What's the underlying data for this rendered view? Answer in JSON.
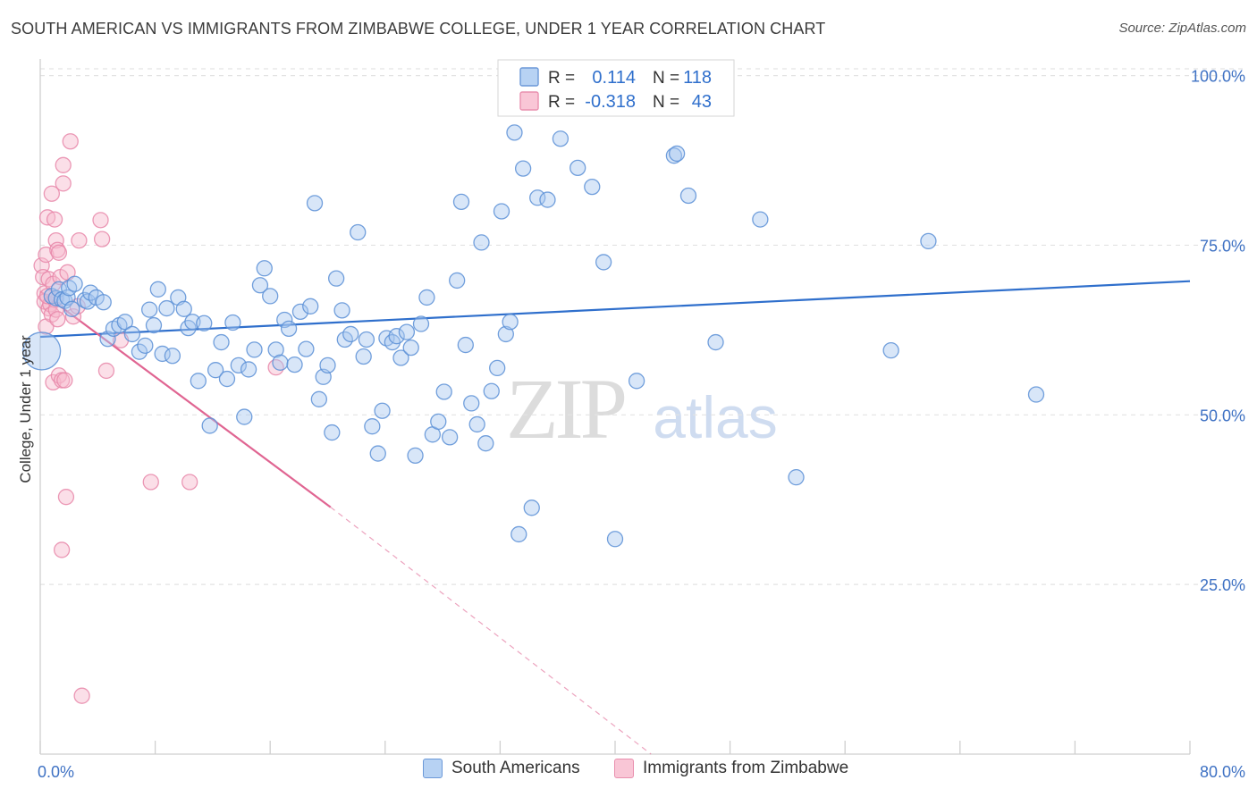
{
  "title": "SOUTH AMERICAN VS IMMIGRANTS FROM ZIMBABWE COLLEGE, UNDER 1 YEAR CORRELATION CHART",
  "source": "Source: ZipAtlas.com",
  "watermark": {
    "zip": "ZIP",
    "atlas": "atlas"
  },
  "colors": {
    "blue_fill": "#a9c8f0",
    "blue_stroke": "#5b8fd6",
    "blue_line": "#2f6fcc",
    "pink_fill": "#f6b8cc",
    "pink_stroke": "#e887a9",
    "pink_line": "#e06592",
    "tick_label": "#3f72c4",
    "grid": "#e3e3e3"
  },
  "legend_box": {
    "rows": [
      {
        "r_label": "R =",
        "r_value": "0.114",
        "n_label": "N =",
        "n_value": "118",
        "color": "blue"
      },
      {
        "r_label": "R =",
        "r_value": "-0.318",
        "n_label": "N =",
        "n_value": "43",
        "color": "pink"
      }
    ]
  },
  "legend_bottom": [
    {
      "label": "South Americans",
      "color": "blue"
    },
    {
      "label": "Immigrants from Zimbabwe",
      "color": "pink"
    }
  ],
  "chart_data": {
    "type": "scatter",
    "title": "SOUTH AMERICAN VS IMMIGRANTS FROM ZIMBABWE COLLEGE, UNDER 1 YEAR CORRELATION CHART",
    "xlabel": "",
    "ylabel": "College, Under 1 year",
    "xlim": [
      0,
      80
    ],
    "ylim": [
      0,
      101
    ],
    "x_tick_labels": [
      "0.0%",
      "80.0%"
    ],
    "y_ticks": [
      {
        "value": 25,
        "label": "25.0%"
      },
      {
        "value": 50,
        "label": "50.0%"
      },
      {
        "value": 75,
        "label": "75.0%"
      },
      {
        "value": 100,
        "label": "100.0%"
      }
    ],
    "grid": "horizontal dashed",
    "legend_position": "top-center",
    "series": [
      {
        "name": "South Americans",
        "color": "blue",
        "R": 0.114,
        "N": 118,
        "trend": {
          "x": [
            0,
            80
          ],
          "y": [
            61.5,
            69.7
          ],
          "style": "solid"
        },
        "points": [
          [
            0.1,
            59.4,
            "large"
          ],
          [
            0.8,
            67.5
          ],
          [
            1.1,
            67.2
          ],
          [
            1.3,
            68.5
          ],
          [
            1.5,
            67.0
          ],
          [
            1.7,
            66.8
          ],
          [
            1.9,
            67.3
          ],
          [
            2.0,
            68.7
          ],
          [
            2.2,
            65.6
          ],
          [
            2.4,
            69.3
          ],
          [
            3.1,
            66.9
          ],
          [
            3.3,
            66.7
          ],
          [
            3.5,
            68.0
          ],
          [
            3.9,
            67.3
          ],
          [
            4.4,
            66.6
          ],
          [
            4.7,
            61.2
          ],
          [
            5.1,
            62.7
          ],
          [
            5.5,
            63.2
          ],
          [
            5.9,
            63.7
          ],
          [
            6.4,
            61.9
          ],
          [
            6.9,
            59.3
          ],
          [
            7.3,
            60.2
          ],
          [
            7.6,
            65.5
          ],
          [
            7.9,
            63.2
          ],
          [
            8.2,
            68.5
          ],
          [
            8.5,
            59.0
          ],
          [
            8.8,
            65.7
          ],
          [
            9.2,
            58.7
          ],
          [
            9.6,
            67.3
          ],
          [
            10.0,
            65.6
          ],
          [
            10.3,
            62.8
          ],
          [
            10.6,
            63.7
          ],
          [
            11.0,
            55.0
          ],
          [
            11.4,
            63.5
          ],
          [
            11.8,
            48.4
          ],
          [
            12.2,
            56.6
          ],
          [
            12.6,
            60.7
          ],
          [
            13.0,
            55.3
          ],
          [
            13.4,
            63.6
          ],
          [
            13.8,
            57.3
          ],
          [
            14.2,
            49.7
          ],
          [
            14.5,
            56.7
          ],
          [
            14.9,
            59.6
          ],
          [
            15.3,
            69.1
          ],
          [
            15.6,
            71.6
          ],
          [
            16.0,
            67.5
          ],
          [
            16.4,
            59.6
          ],
          [
            16.7,
            57.7
          ],
          [
            17.0,
            64.0
          ],
          [
            17.3,
            62.7
          ],
          [
            17.7,
            57.4
          ],
          [
            18.1,
            65.2
          ],
          [
            18.5,
            59.7
          ],
          [
            18.8,
            66.0
          ],
          [
            19.1,
            81.2
          ],
          [
            19.4,
            52.3
          ],
          [
            19.7,
            55.6
          ],
          [
            20.0,
            57.3
          ],
          [
            20.3,
            47.4
          ],
          [
            20.6,
            70.1
          ],
          [
            21.0,
            65.4
          ],
          [
            21.2,
            61.1
          ],
          [
            21.6,
            61.9
          ],
          [
            22.1,
            76.9
          ],
          [
            22.5,
            58.6
          ],
          [
            22.7,
            61.1
          ],
          [
            23.1,
            48.3
          ],
          [
            23.5,
            44.3
          ],
          [
            23.8,
            50.6
          ],
          [
            24.1,
            61.3
          ],
          [
            24.5,
            60.7
          ],
          [
            24.8,
            61.6
          ],
          [
            25.1,
            58.4
          ],
          [
            25.5,
            62.2
          ],
          [
            25.8,
            59.9
          ],
          [
            26.1,
            44.0
          ],
          [
            26.5,
            63.4
          ],
          [
            26.9,
            67.3
          ],
          [
            27.3,
            47.1
          ],
          [
            27.7,
            49.0
          ],
          [
            28.1,
            53.4
          ],
          [
            28.5,
            46.7
          ],
          [
            29.0,
            69.8
          ],
          [
            29.3,
            81.4
          ],
          [
            29.6,
            60.3
          ],
          [
            30.0,
            51.7
          ],
          [
            30.4,
            48.6
          ],
          [
            30.7,
            75.4
          ],
          [
            31.0,
            45.8
          ],
          [
            31.4,
            53.5
          ],
          [
            31.8,
            56.9
          ],
          [
            32.1,
            80.0
          ],
          [
            32.4,
            61.9
          ],
          [
            32.7,
            63.7
          ],
          [
            33.0,
            91.6
          ],
          [
            33.3,
            32.4
          ],
          [
            33.6,
            86.3
          ],
          [
            34.2,
            36.3
          ],
          [
            34.6,
            82.0
          ],
          [
            35.3,
            81.7
          ],
          [
            36.2,
            90.7
          ],
          [
            37.4,
            86.4
          ],
          [
            38.4,
            83.6
          ],
          [
            39.2,
            72.5
          ],
          [
            40.0,
            31.7
          ],
          [
            41.5,
            55.0
          ],
          [
            44.1,
            88.2
          ],
          [
            44.3,
            88.5
          ],
          [
            45.1,
            82.3
          ],
          [
            47.0,
            60.7
          ],
          [
            50.1,
            78.8
          ],
          [
            52.6,
            40.8
          ],
          [
            59.2,
            59.5
          ],
          [
            61.8,
            75.6
          ],
          [
            69.3,
            53.0
          ]
        ]
      },
      {
        "name": "Immigrants from Zimbabwe",
        "color": "pink",
        "R": -0.318,
        "N": 43,
        "trend": {
          "x_solid": [
            0,
            20.2
          ],
          "y_solid": [
            68.2,
            36.4
          ],
          "x_dashed": [
            20.2,
            42.5
          ],
          "y_dashed": [
            36.4,
            0
          ],
          "style": "solid then dashed"
        },
        "points": [
          [
            0.1,
            72.0
          ],
          [
            0.2,
            70.3
          ],
          [
            0.3,
            67.9
          ],
          [
            0.3,
            66.7
          ],
          [
            0.4,
            63.0
          ],
          [
            0.4,
            73.6
          ],
          [
            0.5,
            79.1
          ],
          [
            0.6,
            70.0
          ],
          [
            0.6,
            65.7
          ],
          [
            0.7,
            66.3
          ],
          [
            0.8,
            64.8
          ],
          [
            0.8,
            82.6
          ],
          [
            0.9,
            69.3
          ],
          [
            0.9,
            54.8
          ],
          [
            1.0,
            78.8
          ],
          [
            1.0,
            67.0
          ],
          [
            1.1,
            75.7
          ],
          [
            1.1,
            65.5
          ],
          [
            1.2,
            64.1
          ],
          [
            1.2,
            74.3
          ],
          [
            1.3,
            55.8
          ],
          [
            1.3,
            73.9
          ],
          [
            1.4,
            70.3
          ],
          [
            1.5,
            55.1
          ],
          [
            1.5,
            30.1
          ],
          [
            1.6,
            84.1
          ],
          [
            1.6,
            86.8
          ],
          [
            1.7,
            55.1
          ],
          [
            1.8,
            37.9
          ],
          [
            1.9,
            71.0
          ],
          [
            2.1,
            90.3
          ],
          [
            2.3,
            64.5
          ],
          [
            2.6,
            66.0
          ],
          [
            2.7,
            75.7
          ],
          [
            2.9,
            8.6
          ],
          [
            4.2,
            78.7
          ],
          [
            4.3,
            75.9
          ],
          [
            4.6,
            56.5
          ],
          [
            5.6,
            61.0
          ],
          [
            7.7,
            40.1
          ],
          [
            10.4,
            40.1
          ],
          [
            16.4,
            57.0
          ],
          [
            0.5,
            67.5
          ]
        ]
      }
    ]
  }
}
